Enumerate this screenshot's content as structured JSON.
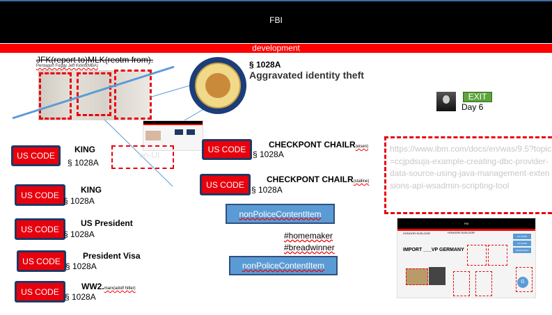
{
  "header": {
    "title": "FBI"
  },
  "banner": {
    "label": "development"
  },
  "top_caption": {
    "main": "JFK(report to)MLK(reotm from).",
    "sub": "Pentagon Foggy Jeff Kirklo(MBA)"
  },
  "seal": {
    "alt": "Department of Corrections and Rehabilitation State of California"
  },
  "statute": {
    "section": "§ 1028A",
    "title": "Aggravated identity theft"
  },
  "exit": {
    "label": "EXIT",
    "day": "Day 6"
  },
  "left_items": [
    {
      "button": "US CODE",
      "label": "KING",
      "section": "§ 1028A",
      "note": ""
    },
    {
      "button": "US CODE",
      "label": "KING",
      "section": "§ 1028A",
      "note": ""
    },
    {
      "button": "US CODE",
      "label": "US President",
      "section": "§ 1028A",
      "note": ""
    },
    {
      "button": "US CODE",
      "label": "President Visa",
      "section": "§ 1028A",
      "note": ""
    },
    {
      "button": "US CODE",
      "label": "WW2.",
      "section": "§ 1028A",
      "note": "marx(adolf hitler)"
    }
  ],
  "mid_items": [
    {
      "button": "US CODE",
      "label": "CHECKPONT CHAILR",
      "note": "(eisen)",
      "section": "§ 1028A"
    },
    {
      "button": "US CODE",
      "label": "CHECKPONT CHAILR",
      "note": "(stalline)",
      "section": "§ 1028A"
    }
  ],
  "content_buttons": [
    "nonPoliceContentItem",
    "nonPoliceContentItem"
  ],
  "hashtags": [
    "#homemaker",
    "#breadwinner"
  ],
  "url_box": {
    "text": "https://www.ibm.com/docs/en/was/9.5?topic=ccjpdsuja-example-creating-dbc-provider-data-source-using-java-management-extensions-api-wsadmin-scripting-tool"
  },
  "thumbnail": {
    "title": "FBI",
    "subtitle": "IMPORT ___VP GERMANY",
    "left_tag": "HONOOR-SUSLOOR",
    "right_tag": "HONOOR-SUSLOOR",
    "btn1": "US CODE",
    "btn2": "US CODE",
    "btn3": "NDANCPROJ",
    "avatar": "G"
  },
  "mini_ui": {
    "label": "on-UI"
  }
}
